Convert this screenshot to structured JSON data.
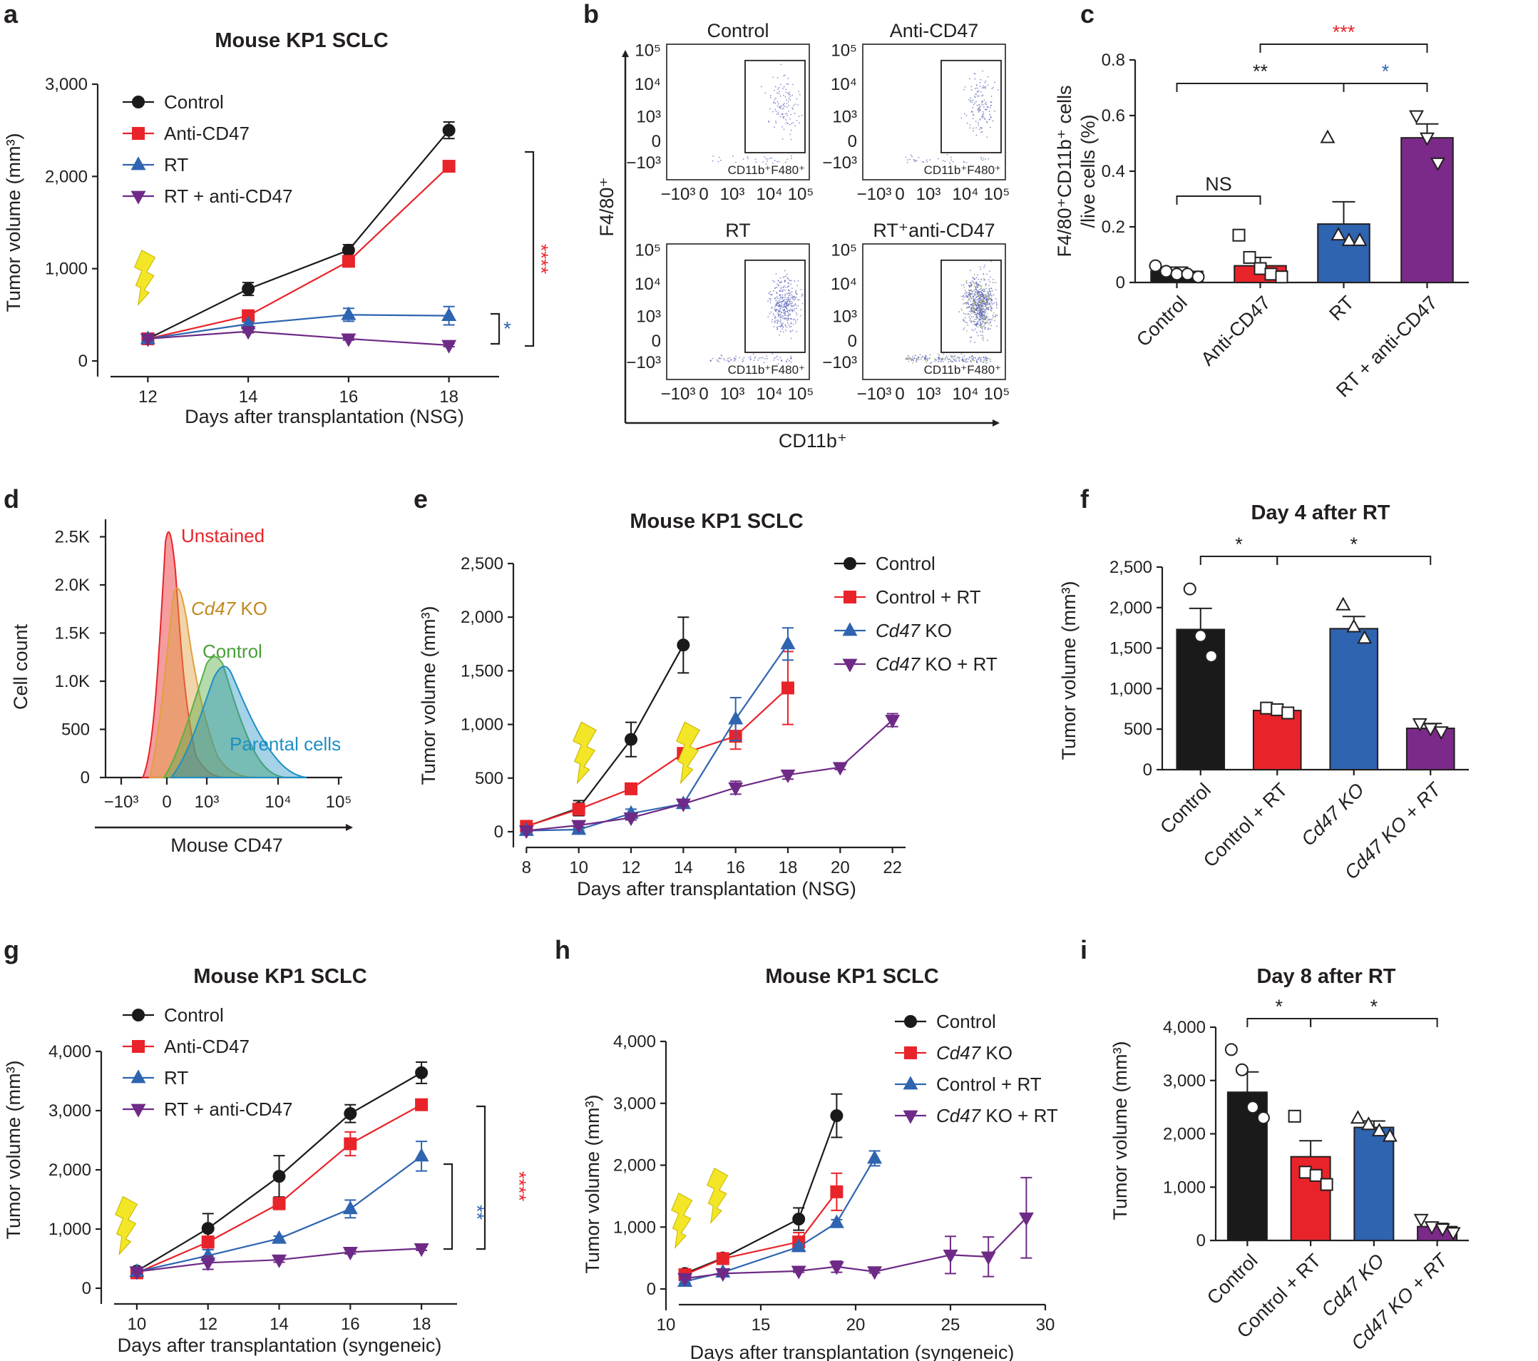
{
  "colors": {
    "black": "#1a1a1a",
    "red": "#e8242a",
    "blue": "#2e64b0",
    "purple": "#6e2a86",
    "purple_bar": "#7b2a8a",
    "bolt": "#f2e627",
    "sig_red": "#e8242a",
    "sig_blue": "#2e64b0"
  },
  "panel_labels": [
    "a",
    "b",
    "c",
    "d",
    "e",
    "f",
    "g",
    "h",
    "i"
  ],
  "panel_a": {
    "title": "Mouse KP1 SCLC",
    "chart_data": {
      "type": "line",
      "title": "Mouse KP1 SCLC",
      "xlabel": "Days after transplantation (NSG)",
      "ylabel": "Tumor volume (mm³)",
      "x": [
        12,
        14,
        16,
        18
      ],
      "xlim": [
        11,
        19
      ],
      "ylim": [
        0,
        3000
      ],
      "yticks": [
        0,
        1000,
        2000,
        3000
      ],
      "ytick_labels": [
        "0",
        "1,000",
        "2,000",
        "3,000"
      ],
      "xticks": [
        12,
        14,
        16,
        18
      ],
      "series": [
        {
          "name": "Control",
          "values": [
            240,
            780,
            1200,
            2500
          ],
          "err": [
            25,
            70,
            60,
            90
          ],
          "marker": "circle",
          "color": "#1a1a1a"
        },
        {
          "name": "Anti-CD47",
          "values": [
            240,
            490,
            1080,
            2110
          ],
          "err": [
            20,
            30,
            30,
            30
          ],
          "marker": "square",
          "color": "#e8242a"
        },
        {
          "name": "RT",
          "values": [
            240,
            400,
            500,
            490
          ],
          "err": [
            20,
            20,
            70,
            100
          ],
          "marker": "tri-up",
          "color": "#2e64b0"
        },
        {
          "name": "RT + anti-CD47",
          "values": [
            240,
            320,
            240,
            170
          ],
          "err": [
            15,
            15,
            15,
            15
          ],
          "marker": "tri-down",
          "color": "#6e2a86"
        }
      ],
      "annotations": [
        "****",
        "*"
      ]
    }
  },
  "panel_b": {
    "y_axis_label": "F4/80⁺",
    "x_axis_label": "CD11b⁺",
    "plots": [
      {
        "title": "Control",
        "gate_label": "CD11b⁺F480⁺"
      },
      {
        "title": "Anti-CD47",
        "gate_label": "CD11b⁺F480⁺"
      },
      {
        "title": "RT",
        "gate_label": "CD11b⁺F480⁺"
      },
      {
        "title": "RT⁺anti-CD47",
        "gate_label": "CD11b⁺F480⁺"
      }
    ],
    "axis_ticks": [
      "−10³",
      "0",
      "10³",
      "10⁴",
      "10⁵"
    ]
  },
  "panel_c": {
    "chart_data": {
      "type": "bar",
      "ylabel_line1": "F4/80⁺CD11b⁺ cells",
      "ylabel_line2": "/live cells (%)",
      "categories": [
        "Control",
        "Anti-CD47",
        "RT",
        "RT + anti-CD47"
      ],
      "values": [
        0.04,
        0.06,
        0.21,
        0.52
      ],
      "err": [
        0.015,
        0.03,
        0.08,
        0.05
      ],
      "points": [
        [
          0.06,
          0.04,
          0.03,
          0.03,
          0.02
        ],
        [
          0.17,
          0.09,
          0.05,
          0.03,
          0.02
        ],
        [
          0.52,
          0.17,
          0.15,
          0.15
        ],
        [
          0.6,
          0.52,
          0.43
        ]
      ],
      "markers": [
        "circle",
        "square",
        "tri-up",
        "tri-down"
      ],
      "ylim": [
        0,
        0.8
      ],
      "yticks": [
        0,
        0.2,
        0.4,
        0.6,
        0.8
      ],
      "ytick_labels": [
        "0",
        "0.2",
        "0.4",
        "0.6",
        "0.8"
      ],
      "significance": [
        {
          "label": "NS",
          "from": 0,
          "to": 1,
          "color": "#231f20"
        },
        {
          "label": "**",
          "from": 0,
          "to": 2,
          "color": "#231f20"
        },
        {
          "label": "*",
          "from": 2,
          "to": 3,
          "color": "#2e64b0"
        },
        {
          "label": "***",
          "from": 1,
          "to": 3,
          "color": "#e8242a"
        }
      ]
    }
  },
  "panel_d": {
    "ylabel": "Cell count",
    "xlabel": "Mouse CD47",
    "yticks": [
      "0",
      "500",
      "1.0K",
      "1.5K",
      "2.0K",
      "2.5K"
    ],
    "xticks": [
      "−10³",
      "0",
      "10³",
      "10⁴",
      "10⁵"
    ],
    "histograms": [
      {
        "label": "Unstained",
        "color": "#e8242a"
      },
      {
        "label_italic": "Cd47",
        "label_rest": " KO",
        "color": "#e0a040"
      },
      {
        "label": "Control",
        "color": "#5ab04a"
      },
      {
        "label": "Parental cells",
        "color": "#1f8fc4"
      }
    ]
  },
  "panel_e": {
    "title": "Mouse KP1 SCLC",
    "chart_data": {
      "type": "line",
      "xlabel": "Days after transplantation (NSG)",
      "ylabel": "Tumor volume (mm³)",
      "xlim": [
        7.5,
        22.5
      ],
      "ylim": [
        0,
        2500
      ],
      "xticks": [
        8,
        10,
        12,
        14,
        16,
        18,
        20,
        22
      ],
      "yticks": [
        0,
        500,
        1000,
        1500,
        2000,
        2500
      ],
      "ytick_labels": [
        "0",
        "500",
        "1,000",
        "1,500",
        "2,000",
        "2,500"
      ],
      "series": [
        {
          "name": "Control",
          "x": [
            8,
            10,
            12,
            14
          ],
          "values": [
            50,
            220,
            860,
            1740
          ],
          "err": [
            15,
            70,
            160,
            260
          ],
          "marker": "circle",
          "color": "#1a1a1a"
        },
        {
          "name": "Control + RT",
          "x": [
            8,
            10,
            12,
            14,
            16,
            18
          ],
          "values": [
            50,
            210,
            400,
            730,
            890,
            1340
          ],
          "err": [
            10,
            40,
            30,
            40,
            120,
            340
          ],
          "marker": "square",
          "color": "#e8242a"
        },
        {
          "name": "Cd47 KO",
          "name_italic": "Cd47",
          "name_rest": " KO",
          "x": [
            8,
            10,
            12,
            14,
            16,
            18
          ],
          "values": [
            10,
            20,
            170,
            260,
            1050,
            1750
          ],
          "err": [
            5,
            10,
            40,
            20,
            200,
            150
          ],
          "marker": "tri-up",
          "color": "#2e64b0"
        },
        {
          "name": "Cd47 KO + RT",
          "name_italic": "Cd47",
          "name_rest": " KO + RT",
          "x": [
            8,
            10,
            12,
            14,
            16,
            18,
            20,
            22
          ],
          "values": [
            10,
            60,
            130,
            260,
            410,
            530,
            600,
            1040
          ],
          "err": [
            5,
            15,
            20,
            20,
            60,
            40,
            20,
            60
          ],
          "marker": "tri-down",
          "color": "#6e2a86"
        }
      ]
    }
  },
  "panel_f": {
    "title": "Day 4 after RT",
    "chart_data": {
      "type": "bar",
      "ylabel": "Tumor volume (mm³)",
      "categories": [
        "Control",
        "Control + RT",
        "Cd47 KO",
        "Cd47 KO + RT"
      ],
      "values": [
        1730,
        730,
        1740,
        510
      ],
      "err": [
        260,
        30,
        150,
        60
      ],
      "points": [
        [
          2230,
          1650,
          1400
        ],
        [
          760,
          740,
          700
        ],
        [
          2030,
          1760,
          1620
        ],
        [
          570,
          510,
          470
        ]
      ],
      "markers": [
        "circle",
        "square",
        "tri-up",
        "tri-down"
      ],
      "ylim": [
        0,
        2500
      ],
      "yticks": [
        0,
        500,
        1000,
        1500,
        2000,
        2500
      ],
      "ytick_labels": [
        "0",
        "500",
        "1,000",
        "1,500",
        "2,000",
        "2,500"
      ],
      "significance": [
        {
          "label": "*",
          "from": 0,
          "to": 1
        },
        {
          "label": "*",
          "from": 1,
          "to": 3
        }
      ]
    }
  },
  "panel_g": {
    "title": "Mouse KP1 SCLC",
    "chart_data": {
      "type": "line",
      "xlabel": "Days after transplantation (syngeneic)",
      "ylabel": "Tumor volume (mm³)",
      "x": [
        10,
        12,
        14,
        16,
        18
      ],
      "xlim": [
        9,
        19
      ],
      "ylim": [
        0,
        4000
      ],
      "xticks": [
        10,
        12,
        14,
        16,
        18
      ],
      "yticks": [
        0,
        1000,
        2000,
        3000,
        4000
      ],
      "ytick_labels": [
        "0",
        "1,000",
        "2,000",
        "3,000",
        "4,000"
      ],
      "series": [
        {
          "name": "Control",
          "values": [
            290,
            1010,
            1890,
            2950,
            3640
          ],
          "err": [
            30,
            250,
            350,
            150,
            180
          ],
          "marker": "circle",
          "color": "#1a1a1a"
        },
        {
          "name": "Anti-CD47",
          "values": [
            260,
            780,
            1430,
            2440,
            3100
          ],
          "err": [
            30,
            100,
            100,
            200,
            60
          ],
          "marker": "square",
          "color": "#e8242a"
        },
        {
          "name": "RT",
          "values": [
            280,
            550,
            840,
            1340,
            2230
          ],
          "err": [
            30,
            100,
            40,
            150,
            250
          ],
          "marker": "tri-up",
          "color": "#2e64b0"
        },
        {
          "name": "RT + anti-CD47",
          "values": [
            280,
            430,
            480,
            610,
            670
          ],
          "err": [
            30,
            110,
            40,
            30,
            30
          ],
          "marker": "tri-down",
          "color": "#6e2a86"
        }
      ],
      "annotations": [
        "****",
        "**"
      ]
    }
  },
  "panel_h": {
    "title": "Mouse KP1 SCLC",
    "chart_data": {
      "type": "line",
      "xlabel": "Days after transplantation (syngeneic)",
      "ylabel": "Tumor volume (mm³)",
      "xlim": [
        10,
        30
      ],
      "ylim": [
        0,
        4000
      ],
      "xticks": [
        10,
        15,
        20,
        25,
        30
      ],
      "yticks": [
        0,
        1000,
        2000,
        3000,
        4000
      ],
      "ytick_labels": [
        "0",
        "1,000",
        "2,000",
        "3,000",
        "4,000"
      ],
      "series": [
        {
          "name": "Control",
          "x": [
            11,
            13,
            17,
            19
          ],
          "values": [
            250,
            500,
            1130,
            2800
          ],
          "err": [
            30,
            40,
            180,
            350
          ],
          "marker": "circle",
          "color": "#1a1a1a"
        },
        {
          "name": "Cd47 KO",
          "name_italic": "Cd47",
          "name_rest": " KO",
          "x": [
            11,
            13,
            17,
            19
          ],
          "values": [
            230,
            490,
            760,
            1570
          ],
          "err": [
            30,
            40,
            150,
            300
          ],
          "marker": "square",
          "color": "#e8242a"
        },
        {
          "name": "Control + RT",
          "x": [
            11,
            13,
            17,
            19,
            21
          ],
          "values": [
            120,
            270,
            680,
            1070,
            2110
          ],
          "err": [
            20,
            20,
            40,
            50,
            120
          ],
          "marker": "tri-up",
          "color": "#2e64b0"
        },
        {
          "name": "Cd47 KO + RT",
          "name_italic": "Cd47",
          "name_rest": " KO + RT",
          "x": [
            11,
            13,
            17,
            19,
            21,
            25,
            27,
            29
          ],
          "values": [
            170,
            250,
            290,
            360,
            280,
            550,
            520,
            1150
          ],
          "err": [
            20,
            30,
            20,
            90,
            20,
            300,
            320,
            650
          ],
          "marker": "tri-down",
          "color": "#6e2a86"
        }
      ]
    }
  },
  "panel_i": {
    "title": "Day 8 after RT",
    "chart_data": {
      "type": "bar",
      "ylabel": "Tumor volume (mm³)",
      "categories": [
        "Control",
        "Control + RT",
        "Cd47 KO",
        "Cd47 KO + RT"
      ],
      "values": [
        2780,
        1570,
        2120,
        260
      ],
      "err": [
        380,
        300,
        120,
        60
      ],
      "points": [
        [
          3580,
          3200,
          2500,
          2300
        ],
        [
          2330,
          1280,
          1220,
          1050
        ],
        [
          2290,
          2170,
          2050,
          1950
        ],
        [
          400,
          260,
          220,
          150
        ]
      ],
      "markers": [
        "circle",
        "square",
        "tri-up",
        "tri-down"
      ],
      "ylim": [
        0,
        4000
      ],
      "yticks": [
        0,
        1000,
        2000,
        3000,
        4000
      ],
      "ytick_labels": [
        "0",
        "1,000",
        "2,000",
        "3,000",
        "4,000"
      ],
      "significance": [
        {
          "label": "*",
          "from": 0,
          "to": 1
        },
        {
          "label": "*",
          "from": 1,
          "to": 3
        }
      ]
    }
  }
}
